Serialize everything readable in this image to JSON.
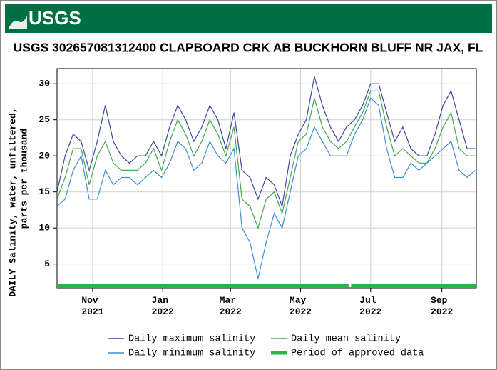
{
  "header": {
    "logo": "USGS"
  },
  "chart_data": {
    "type": "line",
    "title": "USGS 302657081312400 CLAPBOARD CRK AB BUCKHORN BLUFF NR JAX, FL",
    "y_label": [
      "DAILY Salinity, water, unfiltered,",
      "parts per thousand"
    ],
    "x": [
      "2021-10-01",
      "2021-10-08",
      "2021-10-15",
      "2021-10-22",
      "2021-10-29",
      "2021-11-05",
      "2021-11-12",
      "2021-11-19",
      "2021-11-26",
      "2021-12-03",
      "2021-12-10",
      "2021-12-17",
      "2021-12-24",
      "2021-12-31",
      "2022-01-07",
      "2022-01-14",
      "2022-01-21",
      "2022-01-28",
      "2022-02-04",
      "2022-02-11",
      "2022-02-18",
      "2022-02-25",
      "2022-03-04",
      "2022-03-11",
      "2022-03-18",
      "2022-03-25",
      "2022-04-01",
      "2022-04-08",
      "2022-04-15",
      "2022-04-22",
      "2022-04-29",
      "2022-05-06",
      "2022-05-13",
      "2022-05-20",
      "2022-05-27",
      "2022-06-03",
      "2022-06-10",
      "2022-06-17",
      "2022-06-24",
      "2022-07-01",
      "2022-07-08",
      "2022-07-15",
      "2022-07-22",
      "2022-07-29",
      "2022-08-05",
      "2022-08-12",
      "2022-08-19",
      "2022-08-26",
      "2022-09-02",
      "2022-09-09",
      "2022-09-16",
      "2022-09-23",
      "2022-09-30"
    ],
    "series": [
      {
        "name": "Daily maximum salinity",
        "color": "#3a46a0",
        "values": [
          15,
          20,
          23,
          22,
          18,
          22,
          27,
          22,
          20,
          19,
          20,
          20,
          22,
          20,
          24,
          27,
          25,
          22,
          24,
          27,
          25,
          21,
          26,
          18,
          17,
          14,
          17,
          16,
          13,
          20,
          23,
          25,
          31,
          27,
          24,
          22,
          24,
          25,
          27,
          30,
          30,
          26,
          22,
          24,
          21,
          20,
          20,
          23,
          27,
          29,
          25,
          21,
          21
        ]
      },
      {
        "name": "Daily mean salinity",
        "color": "#43a94a",
        "values": [
          14,
          17,
          21,
          21,
          16,
          20,
          22,
          19,
          18,
          18,
          18,
          19,
          21,
          18,
          22,
          25,
          23,
          20,
          22,
          25,
          23,
          20,
          24,
          14,
          13,
          10,
          14,
          15,
          12,
          17,
          22,
          23,
          28,
          24,
          22,
          21,
          22,
          24,
          26,
          29,
          29,
          24,
          20,
          21,
          20,
          19,
          19,
          21,
          24,
          26,
          21,
          20,
          20
        ]
      },
      {
        "name": "Daily minimum salinity",
        "color": "#3d8fd4",
        "values": [
          13,
          14,
          18,
          20,
          14,
          14,
          18,
          16,
          17,
          17,
          16,
          17,
          18,
          17,
          19,
          22,
          21,
          18,
          19,
          22,
          20,
          19,
          21,
          10,
          8,
          3,
          8,
          12,
          10,
          15,
          20,
          21,
          24,
          22,
          20,
          20,
          20,
          23,
          25,
          28,
          27,
          21,
          17,
          17,
          19,
          18,
          19,
          20,
          21,
          22,
          18,
          17,
          18
        ]
      }
    ],
    "approved": {
      "name": "Period of approved data",
      "color": "#2db34a",
      "periods": [
        [
          "2021-10-01",
          "2022-06-12"
        ],
        [
          "2022-06-14",
          "2022-10-01"
        ]
      ]
    },
    "xlim": [
      "2021-10-01",
      "2022-10-01"
    ],
    "xticks": [
      {
        "value": "2021-11-01",
        "label": "Nov 2021"
      },
      {
        "value": "2022-01-01",
        "label": "Jan 2022"
      },
      {
        "value": "2022-03-01",
        "label": "Mar 2022"
      },
      {
        "value": "2022-05-01",
        "label": "May 2022"
      },
      {
        "value": "2022-07-01",
        "label": "Jul 2022"
      },
      {
        "value": "2022-09-01",
        "label": "Sep 2022"
      }
    ],
    "ylim": [
      1.7,
      32.1
    ],
    "yticks": [
      5,
      10,
      15,
      20,
      25,
      30
    ],
    "grid": true
  }
}
